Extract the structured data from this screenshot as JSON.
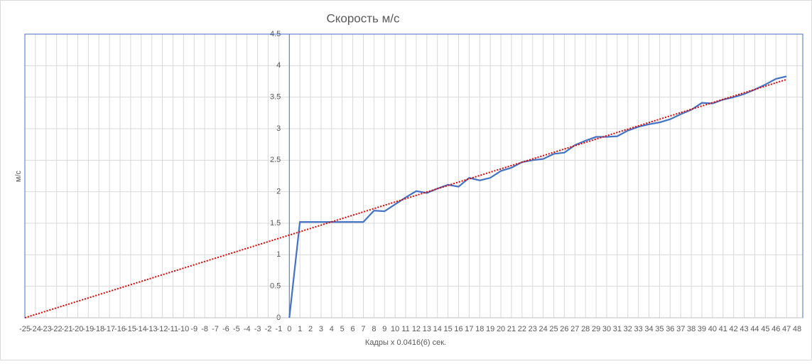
{
  "chart_data": {
    "type": "line",
    "title": "Скорость м/с",
    "x_label": "Кадры x 0.0416(6) сек.",
    "y_label": "м/с",
    "xlim": [
      -25,
      48
    ],
    "ylim": [
      0,
      4.5
    ],
    "xticks": [
      -25,
      -24,
      -23,
      -22,
      -21,
      -20,
      -19,
      -18,
      -17,
      -16,
      -15,
      -14,
      -13,
      -12,
      -11,
      -10,
      -9,
      -8,
      -7,
      -6,
      -5,
      -4,
      -3,
      -2,
      -1,
      0,
      1,
      2,
      3,
      4,
      5,
      6,
      7,
      8,
      9,
      10,
      11,
      12,
      13,
      14,
      15,
      16,
      17,
      18,
      19,
      20,
      21,
      22,
      23,
      24,
      25,
      26,
      27,
      28,
      29,
      30,
      31,
      32,
      33,
      34,
      35,
      36,
      37,
      38,
      39,
      40,
      41,
      42,
      43,
      44,
      45,
      46,
      47,
      48
    ],
    "yticks": [
      0,
      0.5,
      1,
      1.5,
      2,
      2.5,
      3,
      3.5,
      4,
      4.5
    ],
    "grid": true,
    "series": [
      {
        "color": "#4472c4",
        "style": "solid",
        "x": [
          0,
          1,
          2,
          3,
          4,
          5,
          6,
          7,
          8,
          9,
          10,
          11,
          12,
          13,
          14,
          15,
          16,
          17,
          18,
          19,
          20,
          21,
          22,
          23,
          24,
          25,
          26,
          27,
          28,
          29,
          30,
          31,
          32,
          33,
          34,
          35,
          36,
          37,
          38,
          39,
          40,
          41,
          42,
          43,
          44,
          45,
          46,
          47
        ],
        "values": [
          0,
          1.52,
          1.52,
          1.52,
          1.52,
          1.52,
          1.52,
          1.52,
          1.7,
          1.69,
          1.8,
          1.91,
          2.01,
          1.98,
          2.05,
          2.11,
          2.08,
          2.22,
          2.18,
          2.22,
          2.33,
          2.38,
          2.47,
          2.5,
          2.52,
          2.6,
          2.62,
          2.74,
          2.81,
          2.87,
          2.87,
          2.88,
          2.97,
          3.03,
          3.07,
          3.1,
          3.15,
          3.23,
          3.3,
          3.41,
          3.4,
          3.46,
          3.5,
          3.55,
          3.62,
          3.7,
          3.79,
          3.83
        ]
      },
      {
        "color": "#e00000",
        "style": "dotted",
        "x": [
          -25,
          47
        ],
        "values": [
          0,
          3.78
        ]
      }
    ]
  }
}
